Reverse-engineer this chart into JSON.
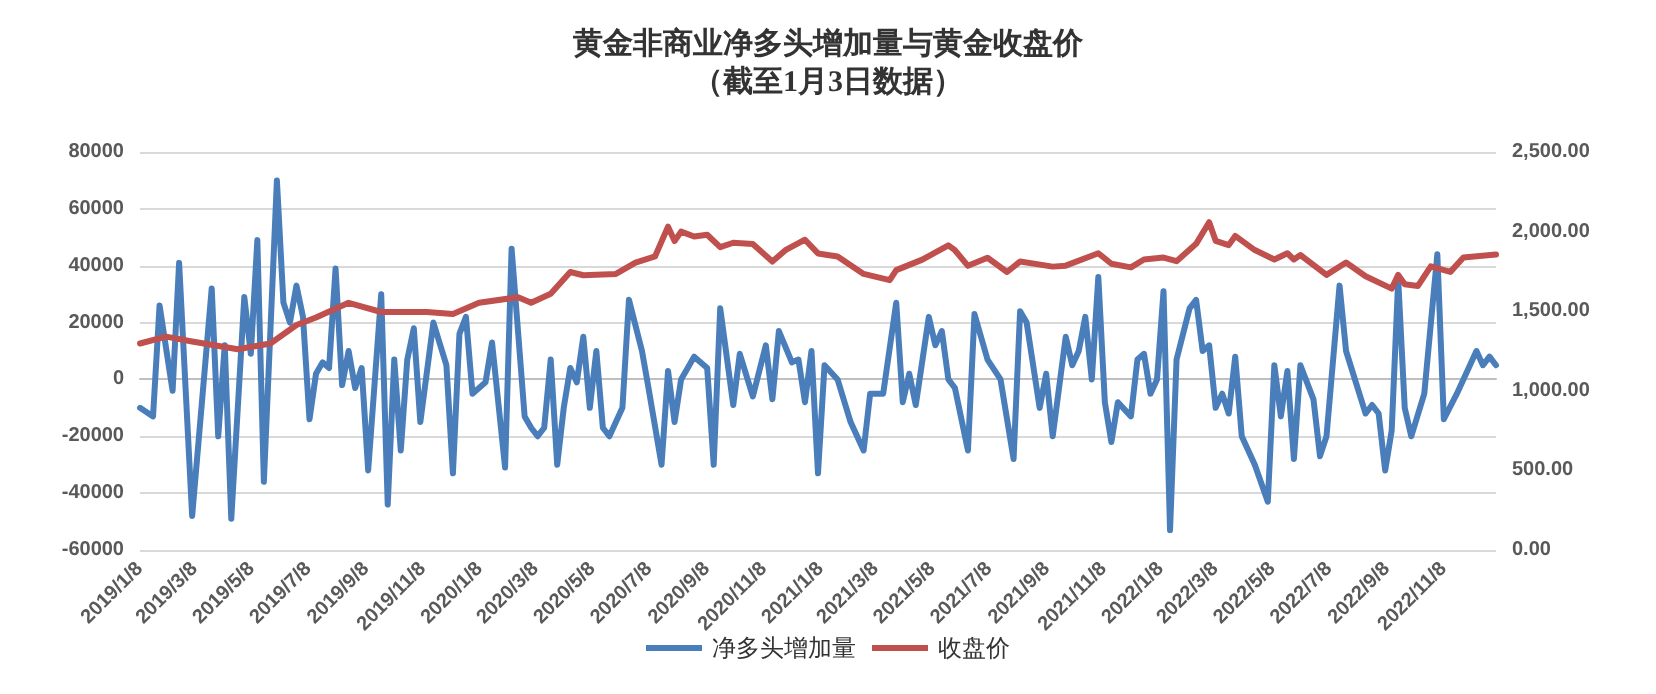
{
  "chart_data": {
    "type": "line",
    "title": "黄金非商业净多头增加量与黄金收盘价",
    "subtitle": "（截至1月3日数据）",
    "series": [
      {
        "name": "净多头增加量",
        "color": "#4a7ebb",
        "x": [
          "2019-01-08",
          "2019-01-22",
          "2019-01-29",
          "2019-02-12",
          "2019-02-19",
          "2019-03-05",
          "2019-03-26",
          "2019-04-02",
          "2019-04-09",
          "2019-04-16",
          "2019-04-30",
          "2019-05-07",
          "2019-05-14",
          "2019-05-21",
          "2019-06-04",
          "2019-06-11",
          "2019-06-18",
          "2019-06-25",
          "2019-07-02",
          "2019-07-09",
          "2019-07-16",
          "2019-07-23",
          "2019-07-30",
          "2019-08-06",
          "2019-08-13",
          "2019-08-20",
          "2019-08-27",
          "2019-09-03",
          "2019-09-10",
          "2019-09-24",
          "2019-10-01",
          "2019-10-08",
          "2019-10-15",
          "2019-10-22",
          "2019-10-29",
          "2019-11-05",
          "2019-11-19",
          "2019-12-03",
          "2019-12-10",
          "2019-12-17",
          "2019-12-24",
          "2019-12-31",
          "2020-01-14",
          "2020-01-21",
          "2020-02-04",
          "2020-02-11",
          "2020-02-25",
          "2020-03-03",
          "2020-03-10",
          "2020-03-17",
          "2020-03-24",
          "2020-03-31",
          "2020-04-07",
          "2020-04-14",
          "2020-04-21",
          "2020-04-28",
          "2020-05-05",
          "2020-05-12",
          "2020-05-19",
          "2020-05-26",
          "2020-06-09",
          "2020-06-16",
          "2020-06-30",
          "2020-07-07",
          "2020-07-21",
          "2020-07-28",
          "2020-08-04",
          "2020-08-11",
          "2020-08-25",
          "2020-09-08",
          "2020-09-15",
          "2020-09-22",
          "2020-10-06",
          "2020-10-13",
          "2020-10-27",
          "2020-11-10",
          "2020-11-17",
          "2020-11-24",
          "2020-12-08",
          "2020-12-15",
          "2020-12-22",
          "2020-12-29",
          "2021-01-05",
          "2021-01-12",
          "2021-01-26",
          "2021-02-09",
          "2021-02-23",
          "2021-03-02",
          "2021-03-16",
          "2021-03-30",
          "2021-04-06",
          "2021-04-13",
          "2021-04-20",
          "2021-05-04",
          "2021-05-11",
          "2021-05-18",
          "2021-05-25",
          "2021-06-01",
          "2021-06-15",
          "2021-06-22",
          "2021-07-06",
          "2021-07-20",
          "2021-08-03",
          "2021-08-10",
          "2021-08-17",
          "2021-08-31",
          "2021-09-07",
          "2021-09-14",
          "2021-09-28",
          "2021-10-05",
          "2021-10-12",
          "2021-10-19",
          "2021-10-26",
          "2021-11-02",
          "2021-11-09",
          "2021-11-16",
          "2021-11-23",
          "2021-12-07",
          "2021-12-14",
          "2021-12-21",
          "2021-12-28",
          "2022-01-04",
          "2022-01-11",
          "2022-01-18",
          "2022-01-25",
          "2022-02-08",
          "2022-02-15",
          "2022-02-22",
          "2022-03-01",
          "2022-03-08",
          "2022-03-15",
          "2022-03-22",
          "2022-03-29",
          "2022-04-05",
          "2022-04-19",
          "2022-05-03",
          "2022-05-10",
          "2022-05-17",
          "2022-05-24",
          "2022-05-31",
          "2022-06-07",
          "2022-06-21",
          "2022-06-28",
          "2022-07-05",
          "2022-07-19",
          "2022-07-26",
          "2022-08-16",
          "2022-08-23",
          "2022-08-30",
          "2022-09-06",
          "2022-09-13",
          "2022-09-20",
          "2022-09-27",
          "2022-10-04",
          "2022-10-18",
          "2022-11-01",
          "2022-11-08",
          "2022-11-22",
          "2022-12-06",
          "2022-12-13",
          "2022-12-20",
          "2022-12-27",
          "2023-01-03"
        ],
        "values": [
          -10000,
          -13000,
          26000,
          -4000,
          41000,
          -48000,
          32000,
          -20000,
          12000,
          -49000,
          29000,
          9000,
          49000,
          -36000,
          70000,
          27000,
          20000,
          33000,
          22000,
          -14000,
          2000,
          6000,
          4000,
          39000,
          -2000,
          10000,
          -3000,
          4000,
          -32000,
          30000,
          -44000,
          7000,
          -25000,
          7000,
          18000,
          -15000,
          20000,
          5000,
          -33000,
          16000,
          22000,
          -5000,
          -1000,
          13000,
          -31000,
          46000,
          -13000,
          -17000,
          -20000,
          -17000,
          7000,
          -30000,
          -10000,
          4000,
          -1000,
          15000,
          -10000,
          10000,
          -17000,
          -20000,
          -10000,
          28000,
          10000,
          -3000,
          -30000,
          3000,
          -15000,
          0,
          8000,
          4000,
          -30000,
          25000,
          -9000,
          9000,
          -6000,
          12000,
          -7000,
          17000,
          6000,
          7000,
          -8000,
          10000,
          -33000,
          5000,
          0,
          -15000,
          -25000,
          -5000,
          -5000,
          27000,
          -8000,
          2000,
          -9000,
          22000,
          12000,
          17000,
          0,
          -3000,
          -25000,
          23000,
          7000,
          0,
          -28000,
          24000,
          20000,
          -10000,
          2000,
          -20000,
          15000,
          5000,
          10000,
          22000,
          0,
          36000,
          -8000,
          -22000,
          -8000,
          -13000,
          7000,
          9000,
          -5000,
          0,
          31000,
          -53000,
          7000,
          25000,
          28000,
          10000,
          12000,
          -10000,
          -5000,
          -12000,
          8000,
          -20000,
          -30000,
          -43000,
          5000,
          -13000,
          3000,
          -28000,
          5000,
          -7000,
          -27000,
          -20000,
          33000,
          10000,
          -12000,
          -9000,
          -12000,
          -32000,
          -18000,
          35000,
          -10000,
          -20000,
          -5000,
          44000,
          -14000,
          -5000,
          5000,
          10000,
          5000,
          8000,
          5000
        ]
      },
      {
        "name": "收盘价",
        "color": "#c0504d",
        "axis": "y2",
        "x": [
          "2019-01-08",
          "2019-02-05",
          "2019-03-05",
          "2019-04-23",
          "2019-05-28",
          "2019-06-25",
          "2019-07-16",
          "2019-08-20",
          "2019-09-24",
          "2019-11-12",
          "2019-12-10",
          "2020-01-07",
          "2020-02-18",
          "2020-03-03",
          "2020-03-24",
          "2020-04-14",
          "2020-04-28",
          "2020-06-02",
          "2020-06-23",
          "2020-07-14",
          "2020-07-28",
          "2020-08-04",
          "2020-08-11",
          "2020-08-25",
          "2020-09-08",
          "2020-09-22",
          "2020-10-06",
          "2020-10-27",
          "2020-11-17",
          "2020-12-01",
          "2020-12-22",
          "2021-01-05",
          "2021-01-26",
          "2021-02-23",
          "2021-03-23",
          "2021-03-30",
          "2021-04-27",
          "2021-05-25",
          "2021-06-01",
          "2021-06-15",
          "2021-07-06",
          "2021-07-27",
          "2021-08-10",
          "2021-09-14",
          "2021-09-28",
          "2021-11-02",
          "2021-11-16",
          "2021-12-07",
          "2021-12-21",
          "2022-01-11",
          "2022-01-25",
          "2022-02-15",
          "2022-03-01",
          "2022-03-08",
          "2022-03-22",
          "2022-03-29",
          "2022-04-19",
          "2022-05-10",
          "2022-05-24",
          "2022-05-31",
          "2022-06-07",
          "2022-07-05",
          "2022-07-26",
          "2022-08-16",
          "2022-09-13",
          "2022-09-20",
          "2022-09-27",
          "2022-10-11",
          "2022-10-25",
          "2022-11-15",
          "2022-11-29",
          "2023-01-03"
        ],
        "values": [
          1297,
          1340,
          1310,
          1261,
          1297,
          1413,
          1460,
          1553,
          1495,
          1495,
          1483,
          1553,
          1588,
          1553,
          1609,
          1746,
          1726,
          1734,
          1805,
          1844,
          2031,
          1941,
          2000,
          1969,
          1980,
          1902,
          1930,
          1922,
          1812,
          1883,
          1949,
          1863,
          1844,
          1734,
          1695,
          1758,
          1824,
          1914,
          1883,
          1785,
          1836,
          1746,
          1812,
          1780,
          1786,
          1864,
          1798,
          1775,
          1825,
          1837,
          1814,
          1923,
          2059,
          1942,
          1915,
          1973,
          1884,
          1825,
          1864,
          1825,
          1853,
          1728,
          1806,
          1720,
          1642,
          1728,
          1669,
          1658,
          1782,
          1747,
          1837,
          1856
        ]
      }
    ],
    "xlim": [
      "2019-01-08",
      "2023-01-03"
    ],
    "xticks": [
      {
        "value": "2019-01-08",
        "label": "2019/1/8"
      },
      {
        "value": "2019-03-08",
        "label": "2019/3/8"
      },
      {
        "value": "2019-05-08",
        "label": "2019/5/8"
      },
      {
        "value": "2019-07-08",
        "label": "2019/7/8"
      },
      {
        "value": "2019-09-08",
        "label": "2019/9/8"
      },
      {
        "value": "2019-11-08",
        "label": "2019/11/8"
      },
      {
        "value": "2020-01-08",
        "label": "2020/1/8"
      },
      {
        "value": "2020-03-08",
        "label": "2020/3/8"
      },
      {
        "value": "2020-05-08",
        "label": "2020/5/8"
      },
      {
        "value": "2020-07-08",
        "label": "2020/7/8"
      },
      {
        "value": "2020-09-08",
        "label": "2020/9/8"
      },
      {
        "value": "2020-11-08",
        "label": "2020/11/8"
      },
      {
        "value": "2021-01-08",
        "label": "2021/1/8"
      },
      {
        "value": "2021-03-08",
        "label": "2021/3/8"
      },
      {
        "value": "2021-05-08",
        "label": "2021/5/8"
      },
      {
        "value": "2021-07-08",
        "label": "2021/7/8"
      },
      {
        "value": "2021-09-08",
        "label": "2021/9/8"
      },
      {
        "value": "2021-11-08",
        "label": "2021/11/8"
      },
      {
        "value": "2022-01-08",
        "label": "2022/1/8"
      },
      {
        "value": "2022-03-08",
        "label": "2022/3/8"
      },
      {
        "value": "2022-05-08",
        "label": "2022/5/8"
      },
      {
        "value": "2022-07-08",
        "label": "2022/7/8"
      },
      {
        "value": "2022-09-08",
        "label": "2022/9/8"
      },
      {
        "value": "2022-11-08",
        "label": "2022/11/8"
      }
    ],
    "ylim": [
      -60000,
      80000
    ],
    "yticks": [
      -60000,
      -40000,
      -20000,
      0,
      20000,
      40000,
      60000,
      80000
    ],
    "y2lim": [
      0,
      2500
    ],
    "y2ticks": [
      {
        "value": 0,
        "label": "0.00"
      },
      {
        "value": 500,
        "label": "500.00"
      },
      {
        "value": 1000,
        "label": "1,000.00"
      },
      {
        "value": 1500,
        "label": "1,500.00"
      },
      {
        "value": 2000,
        "label": "2,000.00"
      },
      {
        "value": 2500,
        "label": "2,500.00"
      }
    ],
    "grid": "y",
    "legend": "bottom",
    "marker": "none",
    "line_style": "solid"
  }
}
